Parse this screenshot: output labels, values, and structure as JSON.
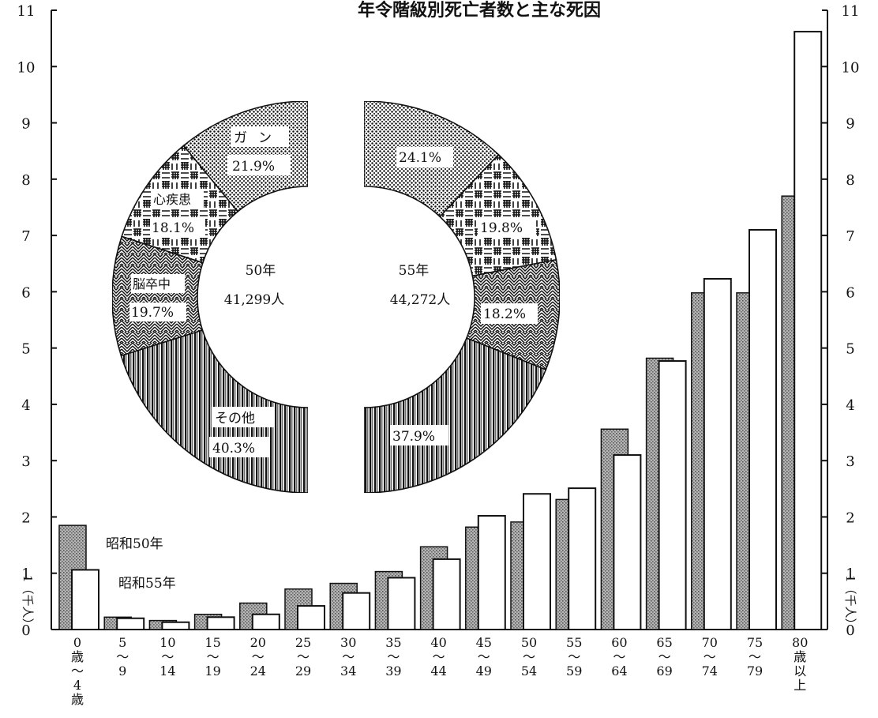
{
  "chart_data": [
    {
      "type": "bar",
      "title": "年令階級別死亡者数と主な死因",
      "ylabel": "1（千人）",
      "ylim": [
        0,
        11
      ],
      "yticks": [
        0,
        1,
        2,
        3,
        4,
        5,
        6,
        7,
        8,
        9,
        10,
        11
      ],
      "grid": false,
      "legend_placement": "top-left inside",
      "categories": [
        {
          "top": "0",
          "mid": "歳",
          "sep": "～",
          "bot": "4",
          "extra": "歳"
        },
        {
          "top": "5",
          "sep": "～",
          "bot": "9"
        },
        {
          "top": "10",
          "sep": "～",
          "bot": "14"
        },
        {
          "top": "15",
          "sep": "～",
          "bot": "19"
        },
        {
          "top": "20",
          "sep": "～",
          "bot": "24"
        },
        {
          "top": "25",
          "sep": "～",
          "bot": "29"
        },
        {
          "top": "30",
          "sep": "～",
          "bot": "34"
        },
        {
          "top": "35",
          "sep": "～",
          "bot": "39"
        },
        {
          "top": "40",
          "sep": "～",
          "bot": "44"
        },
        {
          "top": "45",
          "sep": "～",
          "bot": "49"
        },
        {
          "top": "50",
          "sep": "～",
          "bot": "54"
        },
        {
          "top": "55",
          "sep": "～",
          "bot": "59"
        },
        {
          "top": "60",
          "sep": "～",
          "bot": "64"
        },
        {
          "top": "65",
          "sep": "～",
          "bot": "69"
        },
        {
          "top": "70",
          "sep": "～",
          "bot": "74"
        },
        {
          "top": "75",
          "sep": "～",
          "bot": "79"
        },
        {
          "top": "80",
          "mid": "歳",
          "sep": "以",
          "bot": "上"
        }
      ],
      "series": [
        {
          "name": "昭和50年",
          "fill": "dotted-gray",
          "values": [
            1.85,
            0.22,
            0.16,
            0.27,
            0.47,
            0.72,
            0.82,
            1.03,
            1.47,
            1.82,
            1.91,
            2.31,
            3.56,
            4.82,
            5.98,
            5.98,
            7.7
          ]
        },
        {
          "name": "昭和55年",
          "fill": "white",
          "values": [
            1.06,
            0.2,
            0.13,
            0.22,
            0.27,
            0.42,
            0.65,
            0.92,
            1.25,
            2.02,
            2.41,
            2.51,
            3.1,
            4.77,
            6.23,
            7.1,
            10.62
          ]
        }
      ]
    },
    {
      "type": "pie",
      "subtype": "split-donut",
      "charts": [
        {
          "side": "left",
          "center_label": "50年",
          "center_value": "41,299人",
          "slices": [
            {
              "label": "ガン",
              "pct_text": "21.9%",
              "value": 21.9,
              "pattern": "dots"
            },
            {
              "label": "心疾患",
              "pct_text": "18.1%",
              "value": 18.1,
              "pattern": "weave"
            },
            {
              "label": "脳卒中",
              "pct_text": "19.7%",
              "value": 19.7,
              "pattern": "herringbone"
            },
            {
              "label": "その他",
              "pct_text": "40.3%",
              "value": 40.3,
              "pattern": "vertical-lines"
            }
          ]
        },
        {
          "side": "right",
          "center_label": "55年",
          "center_value": "44,272人",
          "slices": [
            {
              "label": "",
              "pct_text": "24.1%",
              "value": 24.1,
              "pattern": "dots"
            },
            {
              "label": "",
              "pct_text": "19.8%",
              "value": 19.8,
              "pattern": "weave"
            },
            {
              "label": "",
              "pct_text": "18.2%",
              "value": 18.2,
              "pattern": "herringbone"
            },
            {
              "label": "",
              "pct_text": "37.9%",
              "value": 37.9,
              "pattern": "vertical-lines"
            }
          ]
        }
      ]
    }
  ],
  "colors": {
    "ink": "#111111",
    "bar50_fill": "#9a9a9a",
    "bar55_fill": "#ffffff",
    "paper": "#ffffff"
  }
}
